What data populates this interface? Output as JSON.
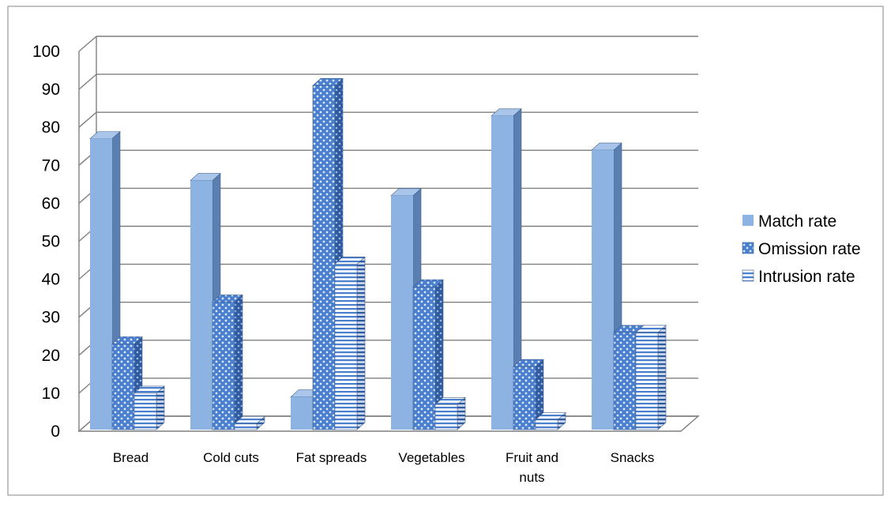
{
  "chart_data": {
    "type": "bar",
    "title": "",
    "xlabel": "",
    "ylabel": "",
    "ylim": [
      0,
      100
    ],
    "yticks": [
      0,
      10,
      20,
      30,
      40,
      50,
      60,
      70,
      80,
      90,
      100
    ],
    "grid": true,
    "legend_position": "right",
    "categories": [
      "Bread",
      "Cold cuts",
      "Fat spreads",
      "Vegetables",
      "Fruit and nuts",
      "Snacks"
    ],
    "series": [
      {
        "name": "Match rate",
        "values": [
          77,
          66,
          9,
          62,
          83,
          74
        ],
        "color": "#8DB3E2",
        "pattern": "solid"
      },
      {
        "name": "Omission rate",
        "values": [
          23,
          34,
          91,
          38,
          17,
          26
        ],
        "color": "#4A7FD0",
        "pattern": "dots"
      },
      {
        "name": "Intrusion rate",
        "values": [
          10,
          2,
          44,
          7,
          3,
          26
        ],
        "color": "#4A7FD0",
        "pattern": "horizontal-lines"
      }
    ]
  }
}
